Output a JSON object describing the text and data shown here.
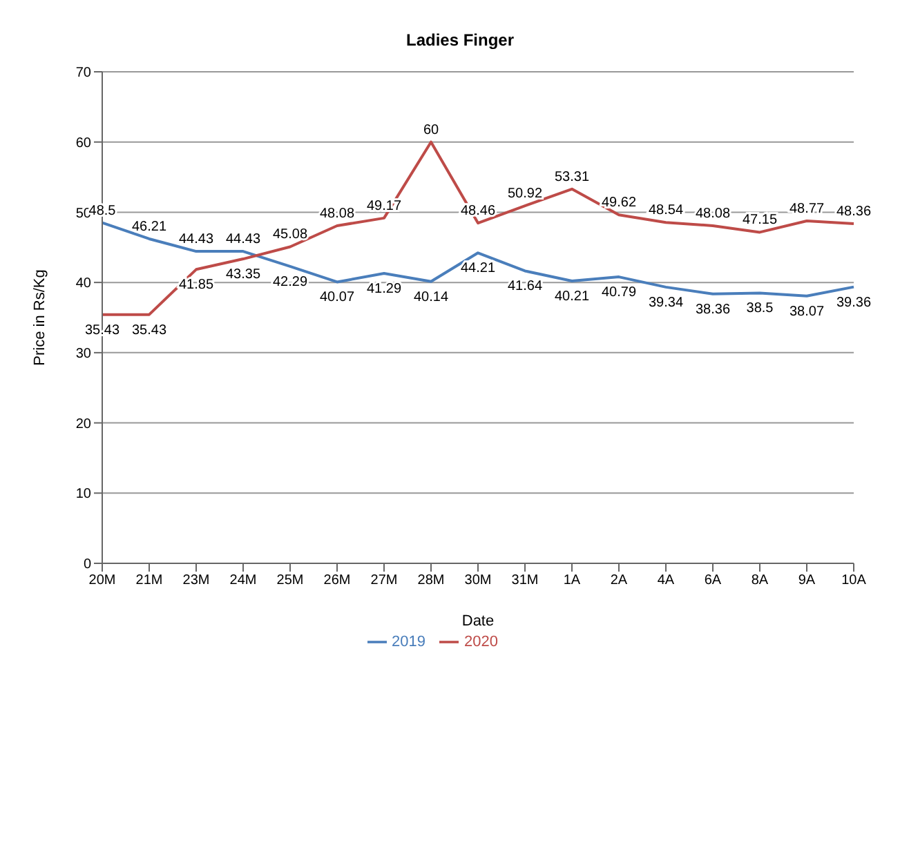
{
  "chart_data": {
    "type": "line",
    "title": "Ladies Finger",
    "xlabel": "Date",
    "ylabel": "Price in Rs/Kg",
    "categories": [
      "20M",
      "21M",
      "23M",
      "24M",
      "25M",
      "26M",
      "27M",
      "28M",
      "30M",
      "31M",
      "1A",
      "2A",
      "4A",
      "6A",
      "8A",
      "9A",
      "10A"
    ],
    "series": [
      {
        "name": "2019",
        "color": "#4a7ebb",
        "values": [
          48.5,
          46.21,
          44.43,
          44.43,
          42.29,
          40.07,
          41.29,
          40.14,
          44.21,
          41.64,
          40.21,
          40.79,
          39.34,
          38.36,
          38.5,
          38.07,
          39.36
        ]
      },
      {
        "name": "2020",
        "color": "#be4b48",
        "values": [
          35.43,
          35.43,
          41.85,
          43.35,
          45.08,
          48.08,
          49.17,
          60,
          48.46,
          50.92,
          53.31,
          49.62,
          48.54,
          48.08,
          47.15,
          48.77,
          48.36
        ]
      }
    ],
    "ylim": [
      0,
      70
    ],
    "yticks": [
      0,
      10,
      20,
      30,
      40,
      50,
      60,
      70
    ],
    "grid": "y",
    "legend": "bottom",
    "marker": "none",
    "line_style": "solid",
    "data_labels": true
  }
}
